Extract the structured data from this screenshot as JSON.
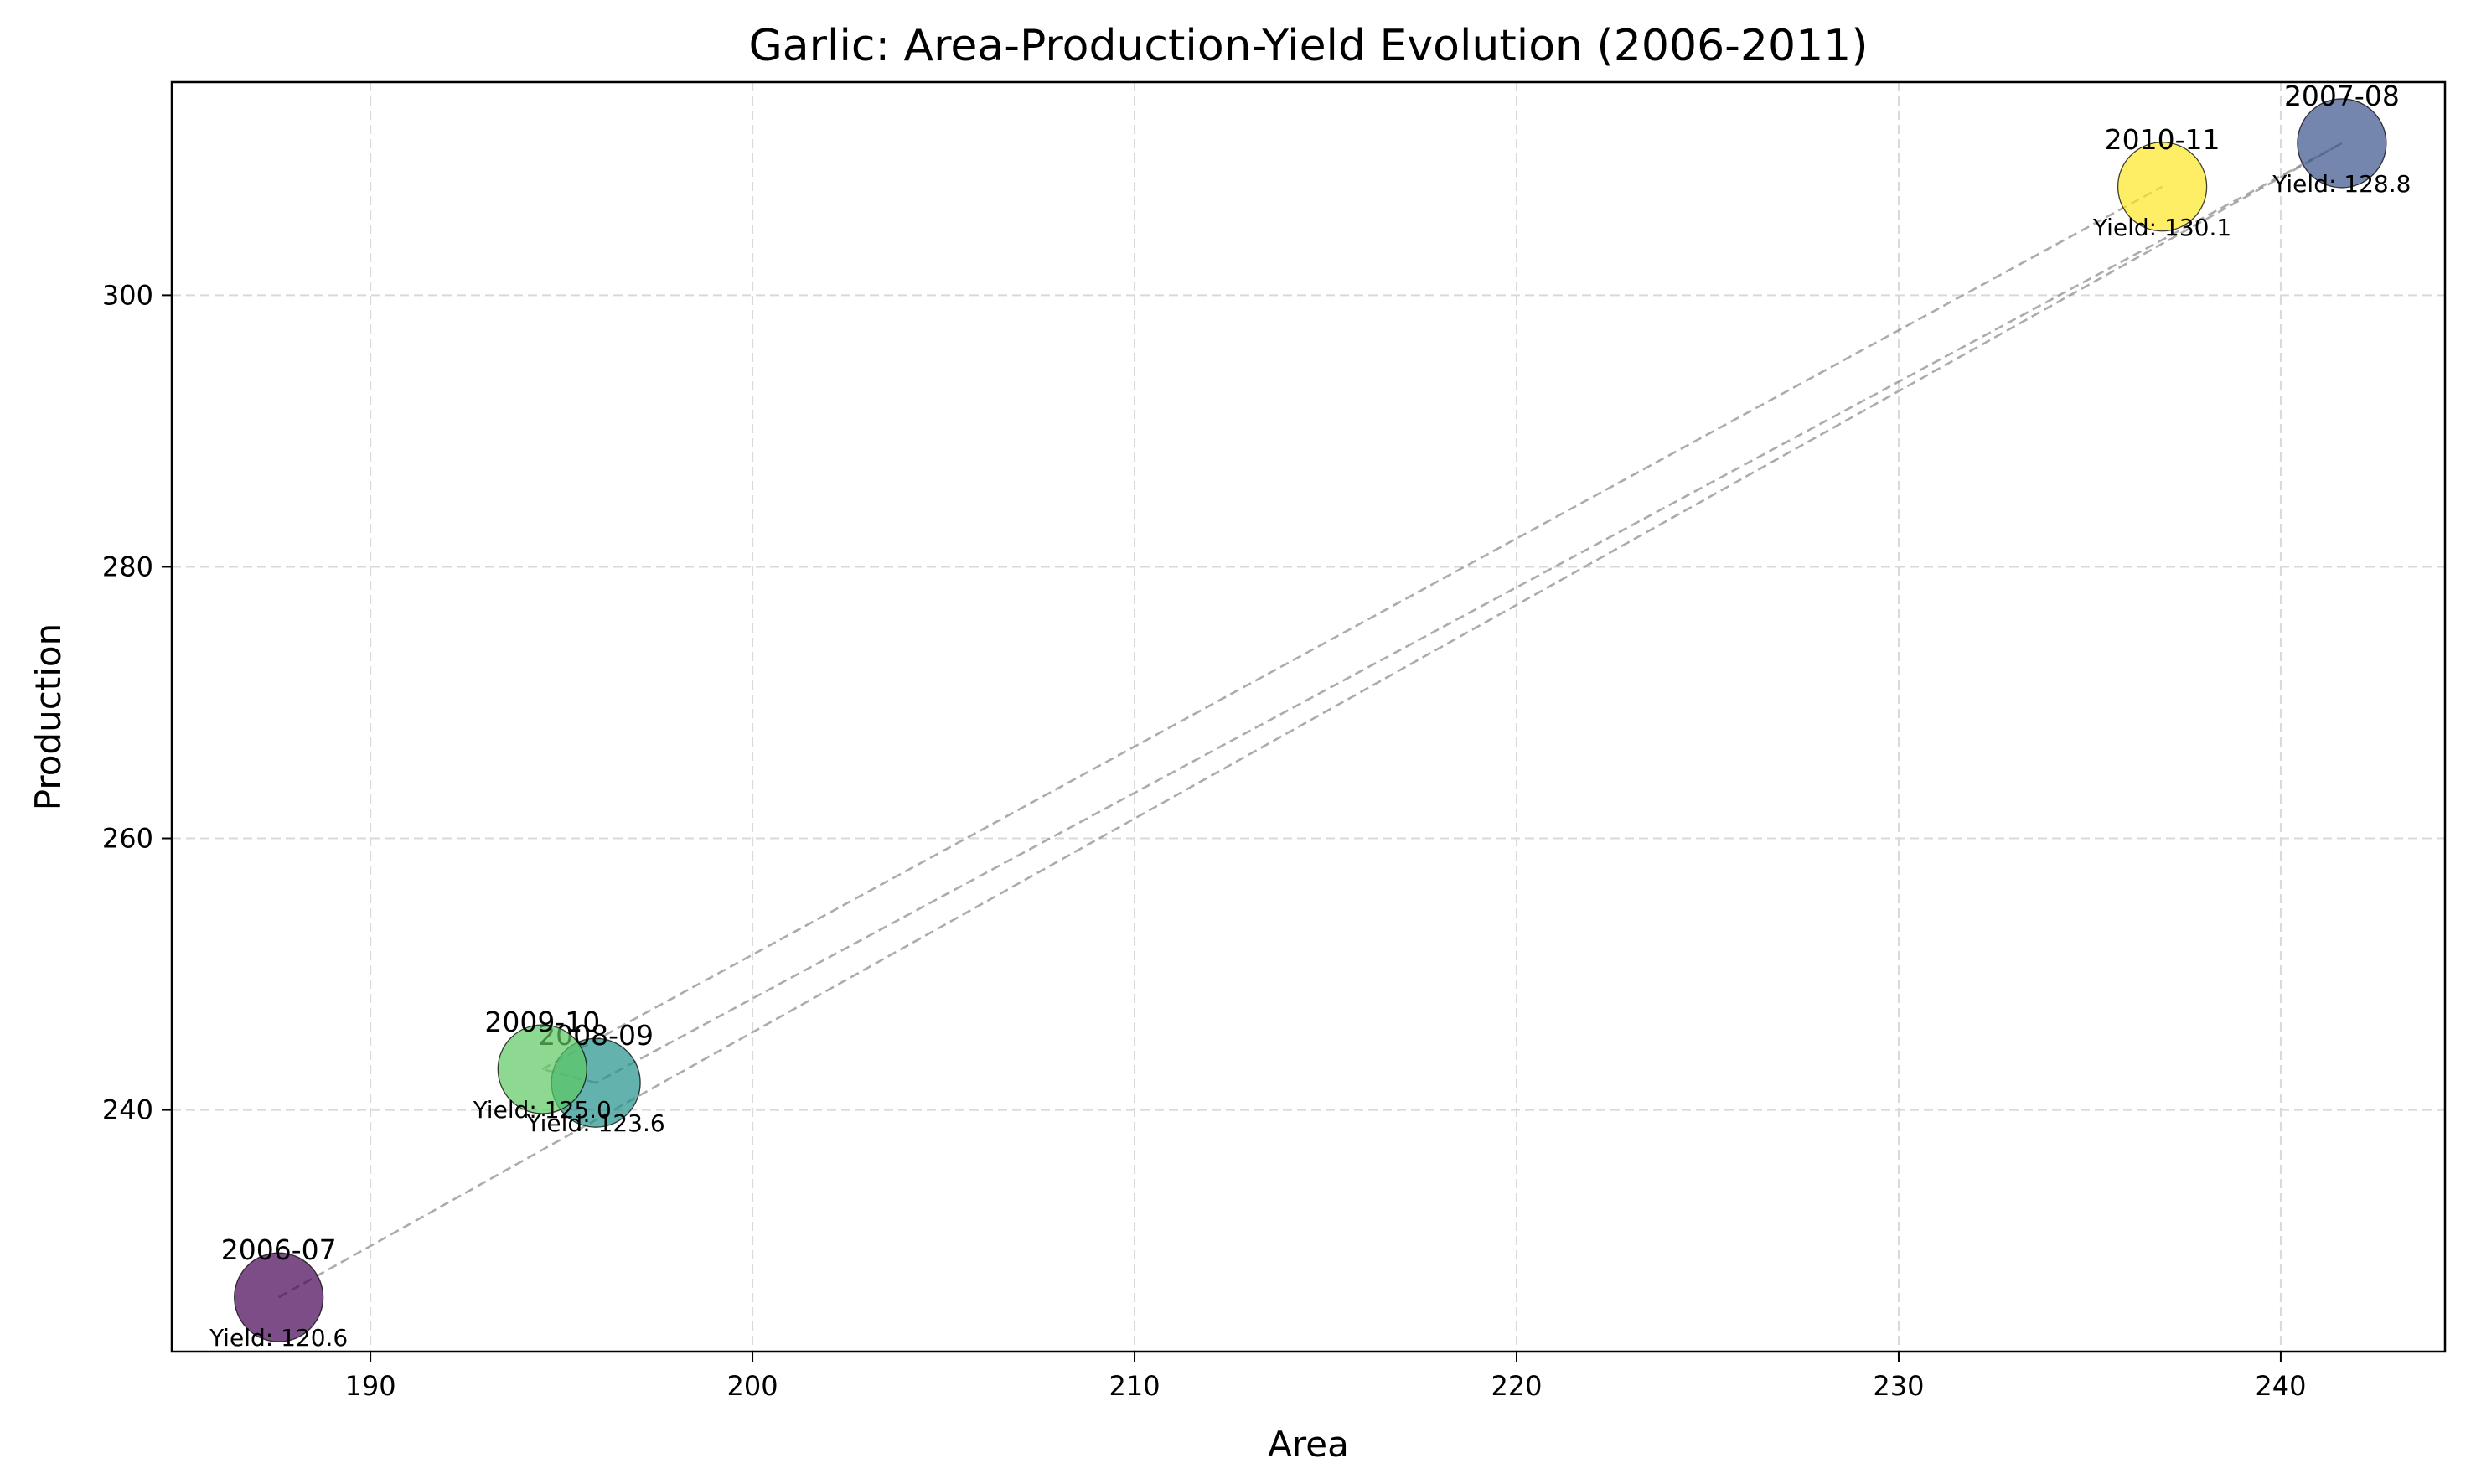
{
  "chart_data": {
    "type": "scatter",
    "title": "Garlic: Area-Production-Yield Evolution (2006-2011)",
    "xlabel": "Area",
    "ylabel": "Production",
    "xlim": [
      184.8,
      244.3
    ],
    "ylim": [
      222.2,
      315.7
    ],
    "xticks": [
      190,
      200,
      210,
      220,
      230,
      240
    ],
    "yticks": [
      240,
      260,
      280,
      300
    ],
    "grid": true,
    "points": [
      {
        "label": "2006-07",
        "x": 187.6,
        "y": 226.2,
        "yield_text": "Yield: 120.6",
        "color": "#440154"
      },
      {
        "label": "2007-08",
        "x": 241.6,
        "y": 311.2,
        "yield_text": "Yield: 128.8",
        "color": "#3b528b"
      },
      {
        "label": "2008-09",
        "x": 195.9,
        "y": 242.0,
        "yield_text": "Yield: 123.6",
        "color": "#21918c"
      },
      {
        "label": "2009-10",
        "x": 194.5,
        "y": 243.0,
        "yield_text": "Yield: 125.0",
        "color": "#5ec962"
      },
      {
        "label": "2010-11",
        "x": 236.9,
        "y": 308.0,
        "yield_text": "Yield: 130.1",
        "color": "#fde725"
      }
    ]
  }
}
